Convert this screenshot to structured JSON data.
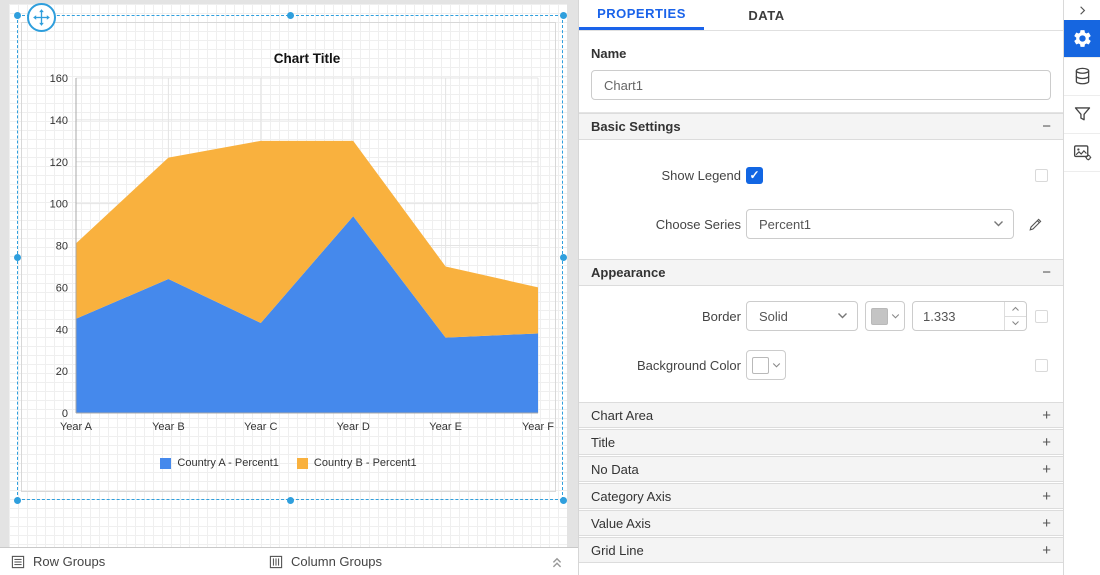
{
  "colors": {
    "selection": "#2f9fdd",
    "tab_accent": "#1a63ea",
    "toolbar_active": "#1666e0",
    "series_a": "#4589ec",
    "series_b": "#f9b13e"
  },
  "chart_data": {
    "type": "area",
    "stacked": true,
    "title": "Chart Title",
    "categories": [
      "Year A",
      "Year B",
      "Year C",
      "Year D",
      "Year E",
      "Year F"
    ],
    "series": [
      {
        "name": "Country A - Percent1",
        "color": "#4589ec",
        "values": [
          45,
          64,
          43,
          94,
          36,
          38
        ]
      },
      {
        "name": "Country B - Percent1",
        "color": "#f9b13e",
        "values": [
          36,
          58,
          87,
          36,
          34,
          22
        ]
      }
    ],
    "ylim": [
      0,
      160
    ],
    "ytick_step": 20,
    "grid": true,
    "legend_position": "bottom"
  },
  "design": {
    "bottom_bar": {
      "row_groups": "Row Groups",
      "column_groups": "Column Groups"
    }
  },
  "panel": {
    "tabs": {
      "properties": "PROPERTIES",
      "data": "DATA"
    },
    "name": {
      "label": "Name",
      "value": "Chart1"
    },
    "basic_settings": {
      "title": "Basic Settings",
      "collapse_glyph": "−",
      "show_legend": {
        "label": "Show Legend",
        "checked": true,
        "check_glyph": "✓"
      },
      "choose_series": {
        "label": "Choose Series",
        "value": "Percent1"
      }
    },
    "appearance": {
      "title": "Appearance",
      "collapse_glyph": "−",
      "border": {
        "label": "Border",
        "style": "Solid",
        "width": "1.333",
        "color": "#c4c4c4"
      },
      "background_color": {
        "label": "Background Color",
        "value": "#ffffff"
      }
    },
    "collapsed_sections": [
      {
        "label": "Chart Area",
        "glyph": "+"
      },
      {
        "label": "Title",
        "glyph": "+"
      },
      {
        "label": "No Data",
        "glyph": "+"
      },
      {
        "label": "Category Axis",
        "glyph": "+"
      },
      {
        "label": "Value Axis",
        "glyph": "+"
      },
      {
        "label": "Grid Line",
        "glyph": "+"
      }
    ]
  },
  "toolbar": {
    "items": [
      {
        "name": "collapse-panel",
        "icon": "chevron-right",
        "active": false
      },
      {
        "name": "properties",
        "icon": "gear",
        "active": true
      },
      {
        "name": "data",
        "icon": "database",
        "active": false
      },
      {
        "name": "filter",
        "icon": "funnel",
        "active": false
      },
      {
        "name": "image-settings",
        "icon": "image-gear",
        "active": false
      }
    ]
  }
}
